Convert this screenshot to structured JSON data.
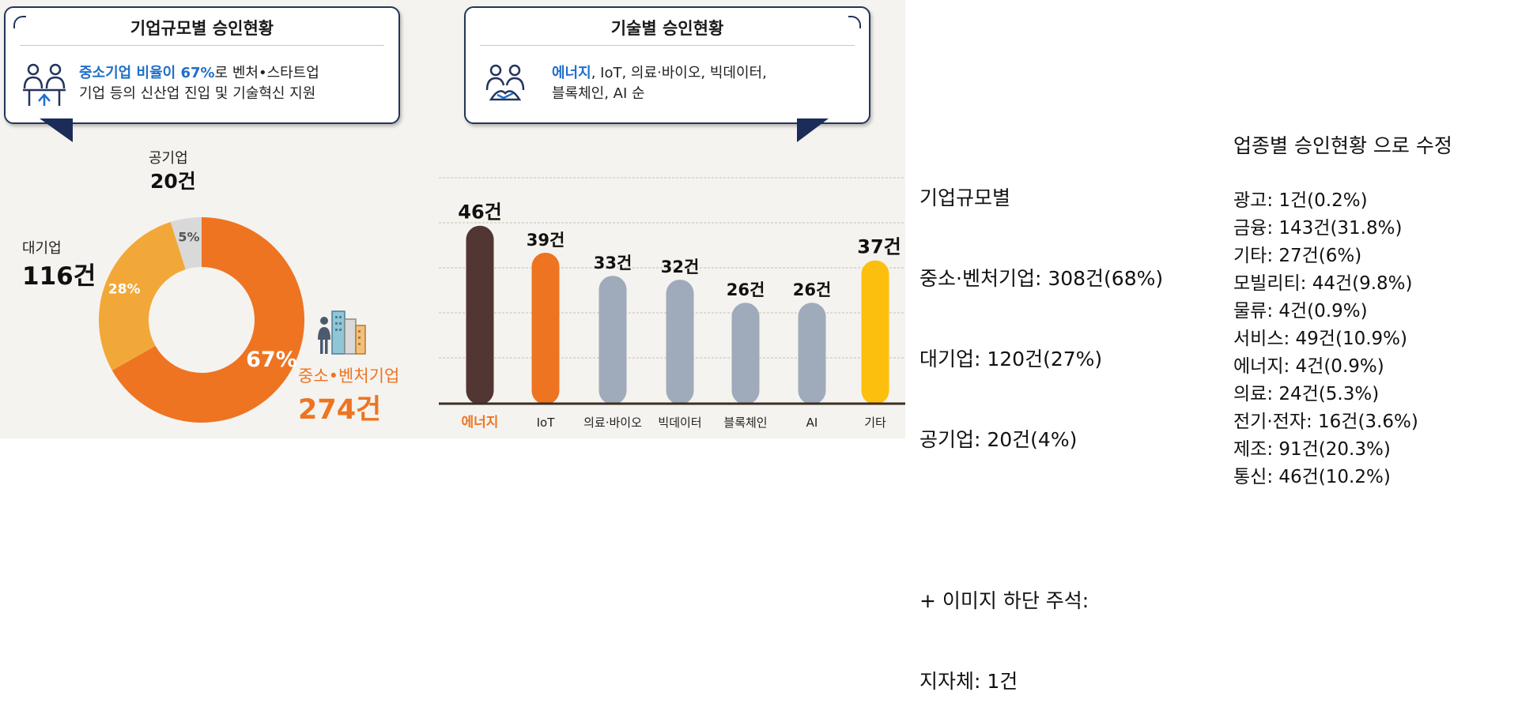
{
  "left_callout": {
    "title": "기업규모별 승인현황",
    "line1_highlight": "중소기업 비율이 67%",
    "line1_rest": "로 벤처•스타트업",
    "line2": "기업 등의 신산업 진입 및 기술혁신 지원"
  },
  "right_callout": {
    "title": "기술별 승인현황",
    "line1_highlight": "에너지",
    "line1_rest": ", IoT, 의료‧바이오, 빅데이터,",
    "line2": "블록체인, AI 순"
  },
  "chart_data": [
    {
      "type": "pie",
      "donut": true,
      "slices": [
        {
          "name": "중소•벤처기업",
          "value": 274,
          "value_label": "274건",
          "percent_label": "67%",
          "color": "#ee7421"
        },
        {
          "name": "대기업",
          "value": 116,
          "value_label": "116건",
          "percent_label": "28%",
          "color": "#f2a838"
        },
        {
          "name": "공기업",
          "value": 20,
          "value_label": "20건",
          "percent_label": "5%",
          "color": "#d9d9d9"
        }
      ]
    },
    {
      "type": "bar",
      "categories": [
        "에너지",
        "IoT",
        "의료‧바이오",
        "빅데이터",
        "블록체인",
        "AI",
        "기타"
      ],
      "values": [
        46,
        39,
        33,
        32,
        26,
        26,
        37
      ],
      "value_labels": [
        "46건",
        "39건",
        "33건",
        "32건",
        "26건",
        "26건",
        "37건"
      ],
      "colors": [
        "#523634",
        "#ee7421",
        "#9fabbb",
        "#9fabbb",
        "#9fabbb",
        "#9fabbb",
        "#fcbf0e"
      ],
      "ylim": [
        0,
        50
      ],
      "grid": true
    }
  ],
  "notes": {
    "size_heading": "기업규모별",
    "size_lines": [
      "중소·벤처기업: 308건(68%)",
      "대기업: 120건(27%)",
      "공기업: 20건(4%)"
    ],
    "footnote_heading": "+ 이미지 하단 주석:",
    "footnote_line": "지자체: 1건",
    "industry_heading": "업종별 승인현황 으로 수정",
    "industry_lines": [
      "광고: 1건(0.2%)",
      "금융: 143건(31.8%)",
      "기타: 27건(6%)",
      "모빌리티: 44건(9.8%)",
      "물류: 4건(0.9%)",
      "서비스: 49건(10.9%)",
      "에너지: 4건(0.9%)",
      "의료: 24건(5.3%)",
      "전기·전자: 16건(3.6%)",
      "제조: 91건(20.3%)",
      "통신: 46건(10.2%)"
    ]
  }
}
